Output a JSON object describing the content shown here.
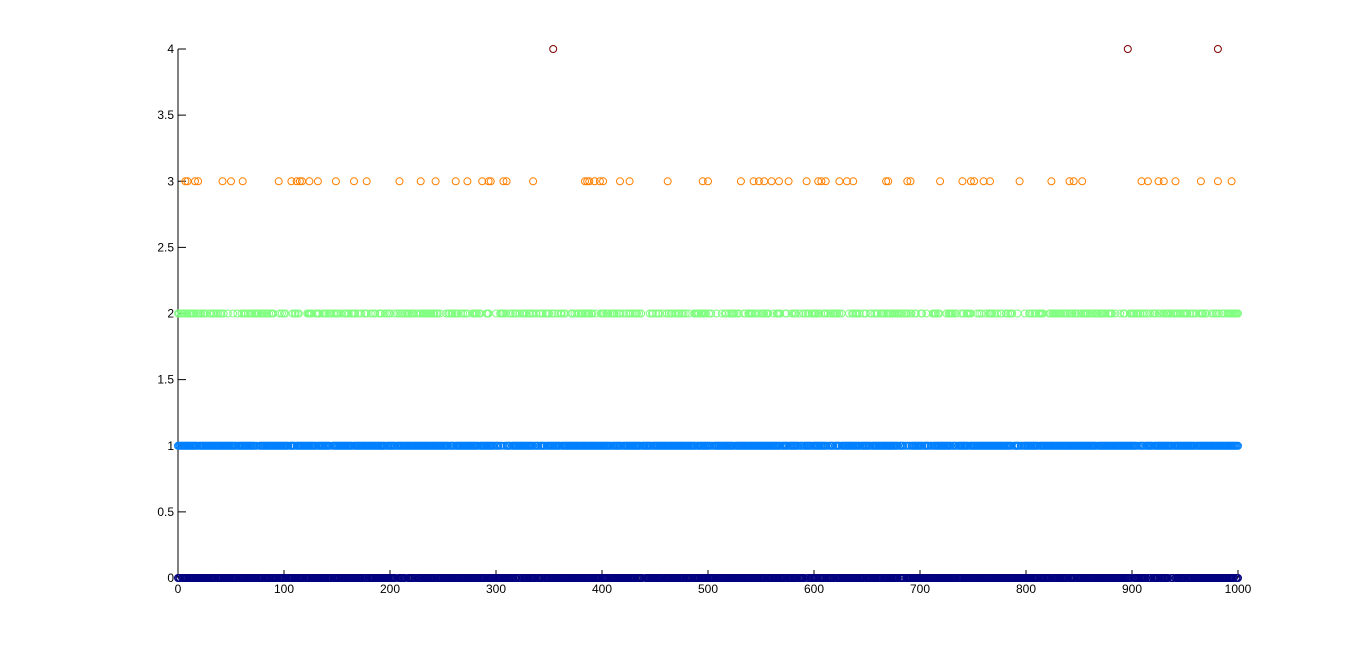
{
  "chart_data": {
    "type": "scatter",
    "title": "",
    "xlabel": "",
    "ylabel": "",
    "xlim": [
      0,
      1000
    ],
    "ylim": [
      0,
      4
    ],
    "x_ticks": [
      "0",
      "100",
      "200",
      "300",
      "400",
      "500",
      "600",
      "700",
      "800",
      "900",
      "1000"
    ],
    "y_ticks": [
      "0",
      "0.5",
      "1",
      "1.5",
      "2",
      "2.5",
      "3",
      "3.5",
      "4"
    ],
    "grid": false,
    "legend": "none",
    "marker": "open-circle",
    "series": [
      {
        "color": "#000080",
        "y": 0,
        "x_range": [
          0,
          1000
        ],
        "density": "dense"
      },
      {
        "color": "#0080ff",
        "y": 1,
        "x_range": [
          0,
          1000
        ],
        "density": "dense"
      },
      {
        "color": "#80ff80",
        "y": 2,
        "x_range": [
          0,
          1000
        ],
        "density": "moderate"
      },
      {
        "color": "#ff8000",
        "y": 3,
        "x": [
          7,
          9,
          16,
          19,
          42,
          50,
          61,
          95,
          107,
          112,
          115,
          117,
          124,
          132,
          149,
          166,
          178,
          209,
          229,
          243,
          262,
          273,
          287,
          293,
          295,
          307,
          310,
          335,
          384,
          386,
          388,
          393,
          398,
          401,
          417,
          426,
          462,
          495,
          500,
          531,
          543,
          548,
          553,
          560,
          567,
          576,
          593,
          604,
          607,
          611,
          624,
          631,
          637,
          668,
          670,
          688,
          691,
          719,
          740,
          748,
          751,
          760,
          766,
          794,
          824,
          841,
          845,
          853,
          909,
          915,
          925,
          930,
          941,
          965,
          981,
          994
        ]
      },
      {
        "color": "#800000",
        "y": 4,
        "x": [
          354,
          896,
          981
        ]
      }
    ]
  }
}
